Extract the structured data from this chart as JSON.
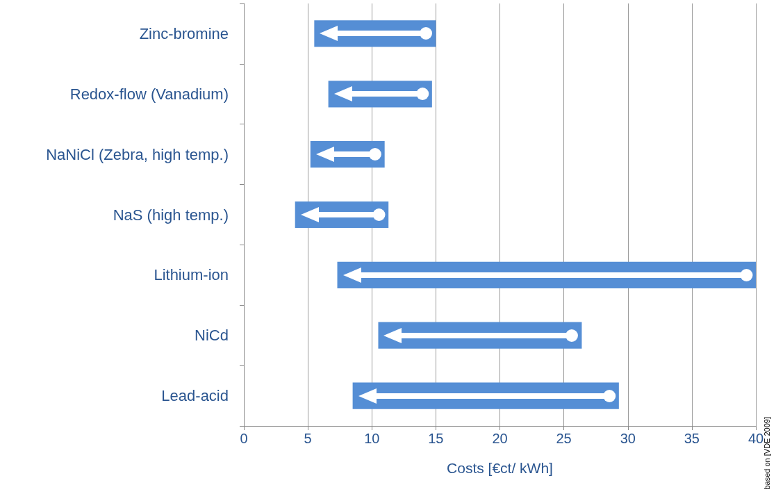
{
  "chart_data": {
    "type": "bar",
    "orientation": "horizontal",
    "xlabel": "Costs [€ct/ kWh]",
    "categories": [
      "Zinc-bromine",
      "Redox-flow (Vanadium)",
      "NaNiCl (Zebra, high temp.)",
      "NaS (high temp.)",
      "Lithium-ion",
      "NiCd",
      "Lead-acid"
    ],
    "values": [
      9.5,
      8.1,
      5.8,
      7.3,
      32.7,
      15.9,
      20.8
    ],
    "base": [
      5.5,
      6.6,
      5.2,
      4.0,
      7.3,
      10.5,
      8.5
    ],
    "color": "#558ed5",
    "xlim": [
      0,
      40
    ],
    "xticks": [
      0,
      5,
      10,
      15,
      20,
      25,
      30,
      35,
      40
    ],
    "grid": "x",
    "annotations": [
      "based on [VDE 2009]"
    ]
  }
}
